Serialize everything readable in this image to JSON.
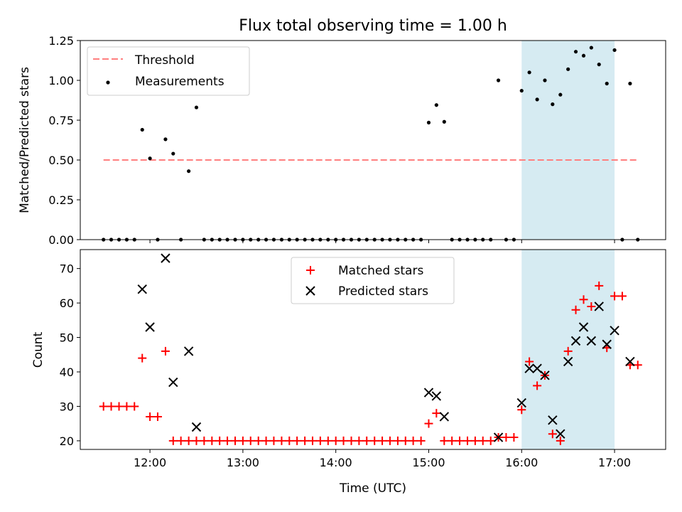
{
  "colors": {
    "threshold": "#ff7f7f",
    "measurements": "#000000",
    "matched": "#ff0000",
    "predicted": "#000000",
    "shade": "#add8e6"
  },
  "chart_data": [
    {
      "type": "scatter",
      "title": "Flux total observing time = 1.00 h",
      "xlabel": "",
      "ylabel": "Matched/Predicted stars",
      "xlim": [
        11.25,
        17.55
      ],
      "ylim": [
        0.0,
        1.25
      ],
      "yticks": [
        "0.00",
        "0.25",
        "0.50",
        "0.75",
        "1.00",
        "1.25"
      ],
      "shaded_x": [
        16.0,
        17.0
      ],
      "legend": {
        "position": "upper-left",
        "threshold_label": "Threshold",
        "measurements_label": "Measurements"
      },
      "threshold": {
        "value": 0.5,
        "x": [
          11.5,
          17.25
        ]
      },
      "series": [
        {
          "name": "Measurements",
          "points": [
            [
              11.5,
              0
            ],
            [
              11.583,
              0
            ],
            [
              11.667,
              0
            ],
            [
              11.75,
              0
            ],
            [
              11.833,
              0
            ],
            [
              11.917,
              0.69
            ],
            [
              12.0,
              0.51
            ],
            [
              12.083,
              0
            ],
            [
              12.167,
              0.63
            ],
            [
              12.25,
              0.54
            ],
            [
              12.333,
              0
            ],
            [
              12.417,
              0.43
            ],
            [
              12.5,
              0.83
            ],
            [
              12.583,
              0
            ],
            [
              12.667,
              0
            ],
            [
              12.75,
              0
            ],
            [
              12.833,
              0
            ],
            [
              12.917,
              0
            ],
            [
              13.0,
              0
            ],
            [
              13.083,
              0
            ],
            [
              13.167,
              0
            ],
            [
              13.25,
              0
            ],
            [
              13.333,
              0
            ],
            [
              13.417,
              0
            ],
            [
              13.5,
              0
            ],
            [
              13.583,
              0
            ],
            [
              13.667,
              0
            ],
            [
              13.75,
              0
            ],
            [
              13.833,
              0
            ],
            [
              13.917,
              0
            ],
            [
              14.0,
              0
            ],
            [
              14.083,
              0
            ],
            [
              14.167,
              0
            ],
            [
              14.25,
              0
            ],
            [
              14.333,
              0
            ],
            [
              14.417,
              0
            ],
            [
              14.5,
              0
            ],
            [
              14.583,
              0
            ],
            [
              14.667,
              0
            ],
            [
              14.75,
              0
            ],
            [
              14.833,
              0
            ],
            [
              14.917,
              0
            ],
            [
              15.0,
              0.735
            ],
            [
              15.083,
              0.845
            ],
            [
              15.167,
              0.74
            ],
            [
              15.25,
              0
            ],
            [
              15.333,
              0
            ],
            [
              15.417,
              0
            ],
            [
              15.5,
              0
            ],
            [
              15.583,
              0
            ],
            [
              15.667,
              0
            ],
            [
              15.75,
              1.0
            ],
            [
              15.833,
              0
            ],
            [
              15.917,
              0
            ],
            [
              16.0,
              0.935
            ],
            [
              16.083,
              1.05
            ],
            [
              16.167,
              0.88
            ],
            [
              16.25,
              1.0
            ],
            [
              16.333,
              0.85
            ],
            [
              16.417,
              0.91
            ],
            [
              16.5,
              1.07
            ],
            [
              16.583,
              1.18
            ],
            [
              16.667,
              1.155
            ],
            [
              16.75,
              1.205
            ],
            [
              16.833,
              1.1
            ],
            [
              16.917,
              0.98
            ],
            [
              17.0,
              1.19
            ],
            [
              17.083,
              0
            ],
            [
              17.167,
              0.98
            ],
            [
              17.25,
              0
            ]
          ]
        }
      ]
    },
    {
      "type": "scatter",
      "title": "",
      "xlabel": "Time (UTC)",
      "ylabel": "Count",
      "xlim": [
        11.25,
        17.55
      ],
      "ylim": [
        17.5,
        75.5
      ],
      "yticks": [
        "20",
        "30",
        "40",
        "50",
        "60",
        "70"
      ],
      "xticks": [
        "12:00",
        "13:00",
        "14:00",
        "15:00",
        "16:00",
        "17:00"
      ],
      "shaded_x": [
        16.0,
        17.0
      ],
      "legend": {
        "position": "upper-center",
        "matched_label": "Matched stars",
        "predicted_label": "Predicted stars"
      },
      "series": [
        {
          "name": "Matched stars",
          "marker": "+",
          "points": [
            [
              11.5,
              30
            ],
            [
              11.583,
              30
            ],
            [
              11.667,
              30
            ],
            [
              11.75,
              30
            ],
            [
              11.833,
              30
            ],
            [
              11.917,
              44
            ],
            [
              12.0,
              27
            ],
            [
              12.083,
              27
            ],
            [
              12.167,
              46
            ],
            [
              12.25,
              20
            ],
            [
              12.333,
              20
            ],
            [
              12.417,
              20
            ],
            [
              12.5,
              20
            ],
            [
              12.583,
              20
            ],
            [
              12.667,
              20
            ],
            [
              12.75,
              20
            ],
            [
              12.833,
              20
            ],
            [
              12.917,
              20
            ],
            [
              13.0,
              20
            ],
            [
              13.083,
              20
            ],
            [
              13.167,
              20
            ],
            [
              13.25,
              20
            ],
            [
              13.333,
              20
            ],
            [
              13.417,
              20
            ],
            [
              13.5,
              20
            ],
            [
              13.583,
              20
            ],
            [
              13.667,
              20
            ],
            [
              13.75,
              20
            ],
            [
              13.833,
              20
            ],
            [
              13.917,
              20
            ],
            [
              14.0,
              20
            ],
            [
              14.083,
              20
            ],
            [
              14.167,
              20
            ],
            [
              14.25,
              20
            ],
            [
              14.333,
              20
            ],
            [
              14.417,
              20
            ],
            [
              14.5,
              20
            ],
            [
              14.583,
              20
            ],
            [
              14.667,
              20
            ],
            [
              14.75,
              20
            ],
            [
              14.833,
              20
            ],
            [
              14.917,
              20
            ],
            [
              15.0,
              25
            ],
            [
              15.083,
              28
            ],
            [
              15.167,
              20
            ],
            [
              15.25,
              20
            ],
            [
              15.333,
              20
            ],
            [
              15.417,
              20
            ],
            [
              15.5,
              20
            ],
            [
              15.583,
              20
            ],
            [
              15.667,
              20
            ],
            [
              15.75,
              21
            ],
            [
              15.833,
              21
            ],
            [
              15.917,
              21
            ],
            [
              16.0,
              29
            ],
            [
              16.083,
              43
            ],
            [
              16.167,
              36
            ],
            [
              16.25,
              39
            ],
            [
              16.333,
              22
            ],
            [
              16.417,
              20
            ],
            [
              16.5,
              46
            ],
            [
              16.583,
              58
            ],
            [
              16.667,
              61
            ],
            [
              16.75,
              59
            ],
            [
              16.833,
              65
            ],
            [
              16.917,
              47
            ],
            [
              17.0,
              62
            ],
            [
              17.083,
              62
            ],
            [
              17.167,
              42
            ],
            [
              17.25,
              42
            ]
          ]
        },
        {
          "name": "Predicted stars",
          "marker": "x",
          "points": [
            [
              11.917,
              64
            ],
            [
              12.0,
              53
            ],
            [
              12.167,
              73
            ],
            [
              12.25,
              37
            ],
            [
              12.417,
              46
            ],
            [
              12.5,
              24
            ],
            [
              15.0,
              34
            ],
            [
              15.083,
              33
            ],
            [
              15.167,
              27
            ],
            [
              15.75,
              21
            ],
            [
              16.0,
              31
            ],
            [
              16.083,
              41
            ],
            [
              16.167,
              41
            ],
            [
              16.25,
              39
            ],
            [
              16.333,
              26
            ],
            [
              16.417,
              22
            ],
            [
              16.5,
              43
            ],
            [
              16.583,
              49
            ],
            [
              16.667,
              53
            ],
            [
              16.75,
              49
            ],
            [
              16.833,
              59
            ],
            [
              16.917,
              48
            ],
            [
              17.0,
              52
            ],
            [
              17.167,
              43
            ]
          ]
        }
      ]
    }
  ]
}
